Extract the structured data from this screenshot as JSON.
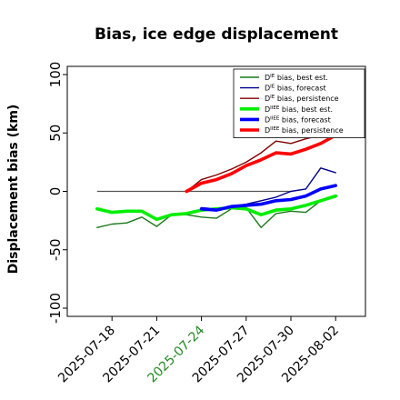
{
  "chart_data": {
    "type": "line",
    "title": "Bias, ice edge displacement",
    "ylabel": "Displacement bias (km)",
    "xlabel": "",
    "ylim": [
      -107,
      107
    ],
    "xlim": [
      "2025-07-15",
      "2025-08-04"
    ],
    "grid": false,
    "legend_position": "top-right",
    "yticks": [
      -100,
      -50,
      0,
      50,
      100
    ],
    "xticks": [
      "2025-07-18",
      "2025-07-21",
      "2025-07-24",
      "2025-07-27",
      "2025-07-30",
      "2025-08-02"
    ],
    "highlight_xtick": "2025-07-24",
    "highlight_color": "#228B22",
    "zero_line": {
      "from": "2025-07-17",
      "to": "2025-07-30",
      "color": "#555555"
    },
    "series": [
      {
        "name": "D$^{IE}$ bias, best est.",
        "color": "#1a7a1a",
        "width": 1.4,
        "x": [
          "2025-07-17",
          "2025-07-18",
          "2025-07-19",
          "2025-07-20",
          "2025-07-21",
          "2025-07-22",
          "2025-07-23",
          "2025-07-24",
          "2025-07-25",
          "2025-07-26",
          "2025-07-27",
          "2025-07-28",
          "2025-07-29",
          "2025-07-30",
          "2025-07-31",
          "2025-08-01",
          "2025-08-02"
        ],
        "values": [
          -31,
          -28,
          -27,
          -22,
          -30,
          -20,
          -20,
          -22,
          -23,
          -15,
          -14,
          -31,
          -19,
          -17,
          -18,
          -8,
          -5
        ]
      },
      {
        "name": "D$^{IE}$ bias, forecast",
        "color": "#00008b",
        "width": 1.4,
        "x": [
          "2025-07-24",
          "2025-07-25",
          "2025-07-26",
          "2025-07-27",
          "2025-07-28",
          "2025-07-29",
          "2025-07-30",
          "2025-07-31",
          "2025-08-01",
          "2025-08-02"
        ],
        "values": [
          -14,
          -15,
          -13,
          -11,
          -8,
          -5,
          0,
          2,
          20,
          16
        ]
      },
      {
        "name": "D$^{IE}$ bias, persistence",
        "color": "#800000",
        "width": 1.4,
        "x": [
          "2025-07-23",
          "2025-07-24",
          "2025-07-25",
          "2025-07-26",
          "2025-07-27",
          "2025-07-28",
          "2025-07-29",
          "2025-07-30",
          "2025-07-31",
          "2025-08-01",
          "2025-08-02"
        ],
        "values": [
          0,
          10,
          14,
          19,
          25,
          33,
          43,
          41,
          45,
          48,
          52
        ]
      },
      {
        "name": "D$^{IIEE}$ bias, best est.",
        "color": "#00ee00",
        "width": 3.6,
        "x": [
          "2025-07-17",
          "2025-07-18",
          "2025-07-19",
          "2025-07-20",
          "2025-07-21",
          "2025-07-22",
          "2025-07-23",
          "2025-07-24",
          "2025-07-25",
          "2025-07-26",
          "2025-07-27",
          "2025-07-28",
          "2025-07-29",
          "2025-07-30",
          "2025-07-31",
          "2025-08-01",
          "2025-08-02"
        ],
        "values": [
          -15,
          -18,
          -17,
          -17,
          -24,
          -20,
          -19,
          -16,
          -15,
          -14,
          -15,
          -20,
          -16,
          -15,
          -12,
          -8,
          -4
        ]
      },
      {
        "name": "D$^{IIEE}$ bias, forecast",
        "color": "#0000ff",
        "width": 3.6,
        "x": [
          "2025-07-24",
          "2025-07-25",
          "2025-07-26",
          "2025-07-27",
          "2025-07-28",
          "2025-07-29",
          "2025-07-30",
          "2025-07-31",
          "2025-08-01",
          "2025-08-02"
        ],
        "values": [
          -15,
          -16,
          -13,
          -12,
          -11,
          -8,
          -7,
          -4,
          2,
          5
        ]
      },
      {
        "name": "D$^{IIEE}$ bias, persistence",
        "color": "#ff0000",
        "width": 3.6,
        "x": [
          "2025-07-23",
          "2025-07-24",
          "2025-07-25",
          "2025-07-26",
          "2025-07-27",
          "2025-07-28",
          "2025-07-29",
          "2025-07-30",
          "2025-07-31",
          "2025-08-01",
          "2025-08-02"
        ],
        "values": [
          0,
          7,
          10,
          15,
          22,
          27,
          33,
          32,
          36,
          41,
          48
        ]
      }
    ],
    "legend_entries": [
      {
        "label": "D",
        "sup": "IE",
        "rest": " bias, best est."
      },
      {
        "label": "D",
        "sup": "IE",
        "rest": " bias, forecast"
      },
      {
        "label": "D",
        "sup": "IE",
        "rest": " bias, persistence"
      },
      {
        "label": "D",
        "sup": "IIEE",
        "rest": " bias, best est."
      },
      {
        "label": "D",
        "sup": "IIEE",
        "rest": " bias, forecast"
      },
      {
        "label": "D",
        "sup": "IIEE",
        "rest": " bias, persistence"
      }
    ]
  }
}
